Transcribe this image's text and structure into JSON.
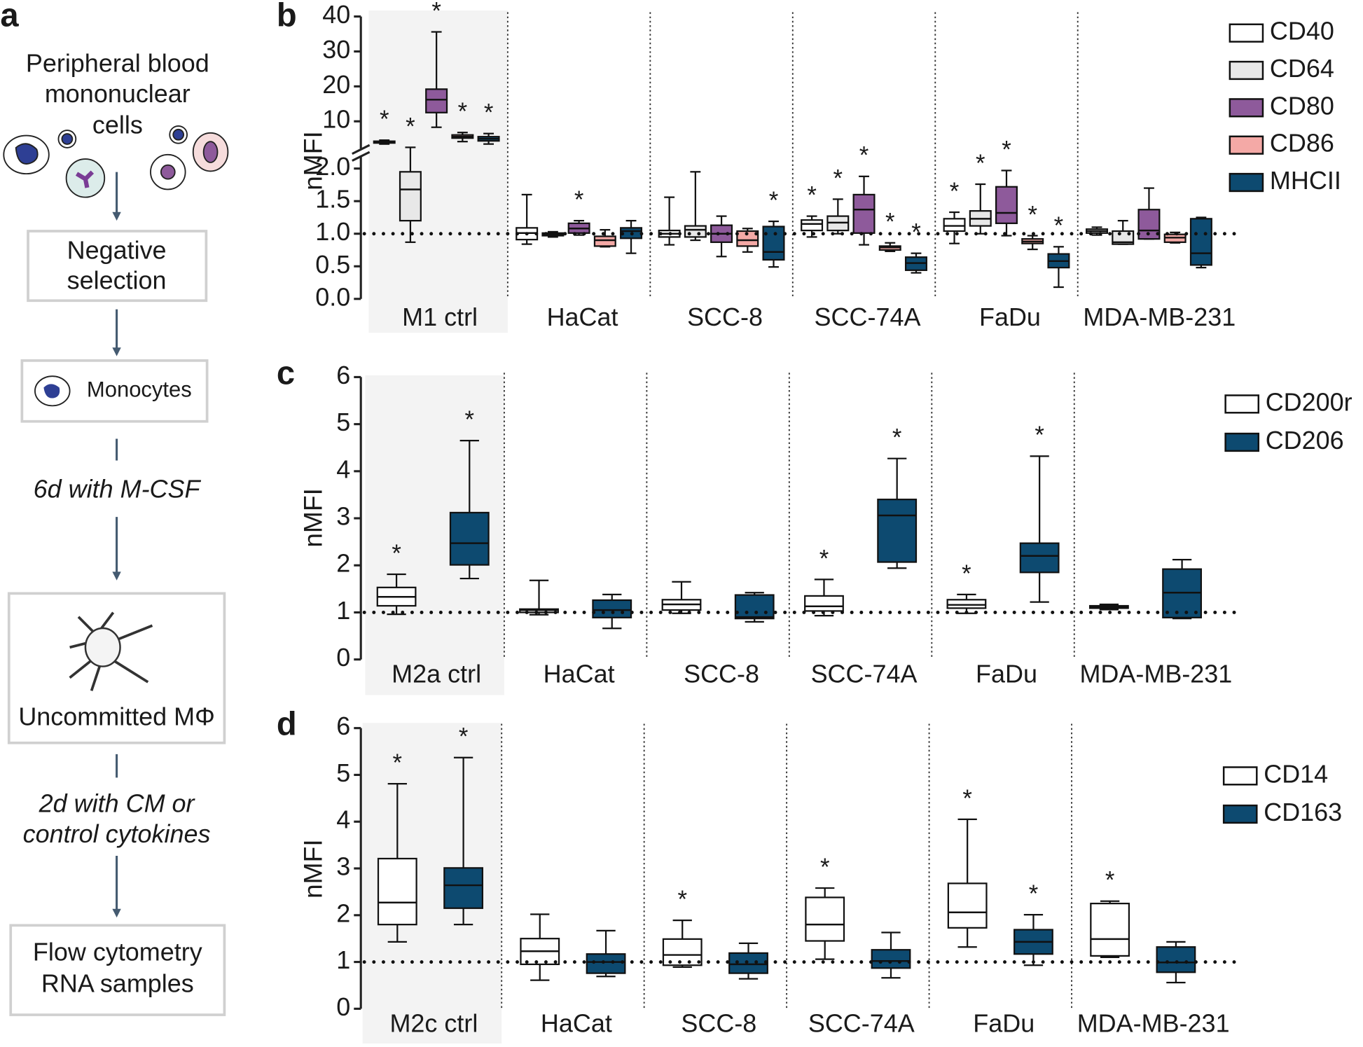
{
  "panel_a": {
    "label": "a",
    "source": [
      "Peripheral blood",
      "mononuclear",
      "cells"
    ],
    "steps": [
      [
        "Negative",
        "selection"
      ],
      [
        "Monocytes"
      ],
      [
        "Uncommitted MΦ"
      ],
      [
        "Flow cytometry",
        "RNA samples"
      ]
    ],
    "treatments": [
      [
        "6d with M-CSF"
      ],
      [
        "2d with CM or",
        "control cytokines"
      ]
    ]
  },
  "chart_data": [
    {
      "type": "box",
      "label": "b",
      "ylabel": "nMFI",
      "categories": [
        "M1 ctrl",
        "HaCat",
        "SCC-8",
        "SCC-74A",
        "FaDu",
        "MDA-MB-231"
      ],
      "ylim": [
        0,
        40
      ],
      "axis_break": 2.2,
      "yticks": [
        {
          "value": 0,
          "label": "0.0"
        },
        0.5,
        {
          "value": 1,
          "label": "1.0"
        },
        1.5,
        {
          "value": 2,
          "label": "2.0"
        },
        10,
        20,
        30,
        40
      ],
      "reference_line": 1,
      "series": [
        {
          "name": "CD40",
          "color": "#ffffff",
          "values": [
            [
              3.5,
              3.8,
              4.0,
              4.3,
              4.6
            ],
            [
              0.84,
              0.91,
              1.01,
              1.09,
              1.6
            ],
            [
              0.83,
              0.95,
              1.0,
              1.05,
              1.56
            ],
            [
              0.95,
              1.05,
              1.15,
              1.21,
              1.27
            ],
            [
              0.85,
              1.04,
              1.12,
              1.23,
              1.33
            ],
            [
              0.98,
              1.01,
              1.04,
              1.07,
              1.1
            ]
          ],
          "labels": [
            "*",
            null,
            null,
            "*",
            "*",
            null
          ]
        },
        {
          "name": "CD64",
          "color": "#e8e8e8",
          "values": [
            [
              0.87,
              1.2,
              1.68,
              1.95,
              2.55
            ],
            [
              0.95,
              0.97,
              0.99,
              1.01,
              1.03
            ],
            [
              0.9,
              0.95,
              1.06,
              1.12,
              1.95
            ],
            [
              1.0,
              1.05,
              1.17,
              1.27,
              1.53
            ],
            [
              1.0,
              1.12,
              1.23,
              1.35,
              1.76
            ],
            [
              0.84,
              0.84,
              0.87,
              1.04,
              1.2
            ]
          ],
          "labels": [
            "*",
            null,
            null,
            "*",
            "*",
            null
          ]
        },
        {
          "name": "CD80",
          "color": "#8e5a9b",
          "values": [
            [
              8.3,
              12.5,
              16.2,
              19.2,
              35.6
            ],
            [
              0.98,
              1.01,
              1.08,
              1.16,
              1.2
            ],
            [
              0.65,
              0.87,
              1.0,
              1.13,
              1.27
            ],
            [
              0.83,
              1.01,
              1.37,
              1.6,
              1.88
            ],
            [
              0.97,
              1.16,
              1.32,
              1.72,
              1.97
            ],
            [
              0.92,
              0.92,
              1.05,
              1.37,
              1.7
            ]
          ],
          "labels": [
            "*",
            "*",
            null,
            "*",
            "*",
            null
          ]
        },
        {
          "name": "CD86",
          "color": "#f4a9a6",
          "values": [
            [
              4.2,
              5.2,
              5.6,
              6.1,
              6.8
            ],
            [
              0.8,
              0.81,
              0.9,
              0.96,
              1.06
            ],
            [
              0.72,
              0.81,
              0.9,
              1.04,
              1.08
            ],
            [
              0.73,
              0.75,
              0.79,
              0.81,
              0.86
            ],
            [
              0.76,
              0.85,
              0.88,
              0.92,
              0.97
            ],
            [
              0.86,
              0.87,
              0.94,
              0.99,
              1.02
            ]
          ],
          "labels": [
            "*",
            null,
            null,
            "*",
            "*",
            null
          ]
        },
        {
          "name": "MHCII",
          "color": "#0d4a70",
          "values": [
            [
              3.5,
              4.4,
              5.0,
              5.6,
              6.5
            ],
            [
              0.7,
              0.93,
              1.04,
              1.09,
              1.2
            ],
            [
              0.49,
              0.6,
              0.72,
              1.11,
              1.19
            ],
            [
              0.4,
              0.44,
              0.55,
              0.64,
              0.7
            ],
            [
              0.18,
              0.48,
              0.58,
              0.69,
              0.8
            ],
            [
              0.48,
              0.52,
              0.7,
              1.23,
              1.25
            ]
          ],
          "labels": [
            "*",
            null,
            "*",
            "*",
            "*",
            null
          ]
        }
      ]
    },
    {
      "type": "box",
      "label": "c",
      "ylabel": "nMFI",
      "categories": [
        "M2a ctrl",
        "HaCat",
        "SCC-8",
        "SCC-74A",
        "FaDu",
        "MDA-MB-231"
      ],
      "ylim": [
        0,
        6
      ],
      "yticks": [
        0,
        1,
        2,
        3,
        4,
        5,
        6
      ],
      "reference_line": 1,
      "series": [
        {
          "name": "CD200r",
          "color": "#ffffff",
          "values": [
            [
              0.96,
              1.14,
              1.33,
              1.53,
              1.81
            ],
            [
              0.95,
              1.0,
              1.05,
              1.07,
              1.68
            ],
            [
              0.98,
              1.05,
              1.17,
              1.27,
              1.65
            ],
            [
              0.93,
              1.03,
              1.13,
              1.35,
              1.7
            ],
            [
              0.98,
              1.09,
              1.16,
              1.27,
              1.38
            ],
            [
              1.06,
              1.09,
              1.11,
              1.14,
              1.17
            ]
          ],
          "labels": [
            "*",
            null,
            null,
            "*",
            "*",
            null
          ]
        },
        {
          "name": "CD206",
          "color": "#0d4a70",
          "values": [
            [
              1.72,
              2.01,
              2.47,
              3.12,
              4.65
            ],
            [
              0.66,
              0.89,
              1.05,
              1.26,
              1.38
            ],
            [
              0.8,
              0.87,
              0.9,
              1.37,
              1.42
            ],
            [
              1.94,
              2.07,
              3.06,
              3.4,
              4.27
            ],
            [
              1.22,
              1.85,
              2.2,
              2.47,
              4.32
            ],
            [
              0.87,
              0.89,
              1.42,
              1.92,
              2.12
            ]
          ],
          "labels": [
            "*",
            null,
            null,
            "*",
            "*",
            null
          ]
        }
      ]
    },
    {
      "type": "box",
      "label": "d",
      "ylabel": "nMFI",
      "categories": [
        "M2c ctrl",
        "HaCat",
        "SCC-8",
        "SCC-74A",
        "FaDu",
        "MDA-MB-231"
      ],
      "ylim": [
        0,
        6
      ],
      "yticks": [
        0,
        1,
        2,
        3,
        4,
        5,
        6
      ],
      "reference_line": 1,
      "series": [
        {
          "name": "CD14",
          "color": "#ffffff",
          "values": [
            [
              1.43,
              1.8,
              2.27,
              3.21,
              4.81
            ],
            [
              0.61,
              0.95,
              1.23,
              1.5,
              2.02
            ],
            [
              0.89,
              0.93,
              1.15,
              1.49,
              1.89
            ],
            [
              1.06,
              1.45,
              1.8,
              2.38,
              2.58
            ],
            [
              1.32,
              1.73,
              2.06,
              2.68,
              4.05
            ],
            [
              1.1,
              1.13,
              1.49,
              2.25,
              2.3
            ]
          ],
          "labels": [
            "*",
            null,
            "*",
            "*",
            "*",
            "*"
          ]
        },
        {
          "name": "CD163",
          "color": "#0d4a70",
          "values": [
            [
              1.8,
              2.15,
              2.64,
              3.01,
              5.37
            ],
            [
              0.69,
              0.76,
              1.0,
              1.17,
              1.67
            ],
            [
              0.64,
              0.76,
              0.95,
              1.19,
              1.4
            ],
            [
              0.66,
              0.87,
              1.02,
              1.26,
              1.63
            ],
            [
              0.93,
              1.17,
              1.43,
              1.69,
              2.01
            ],
            [
              0.56,
              0.78,
              0.99,
              1.32,
              1.43
            ]
          ],
          "labels": [
            "*",
            null,
            null,
            null,
            "*",
            null
          ]
        }
      ]
    }
  ]
}
